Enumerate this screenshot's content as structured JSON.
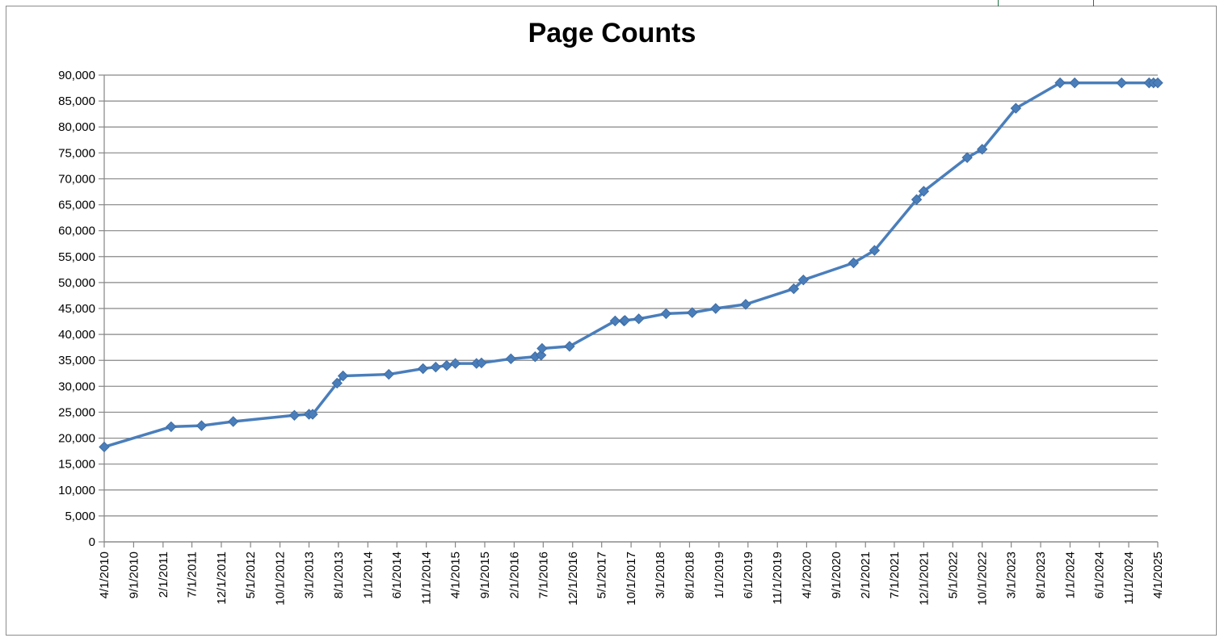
{
  "chart_data": {
    "type": "line",
    "title": "Page Counts",
    "xlabel": "",
    "ylabel": "",
    "ylim": [
      0,
      90000
    ],
    "y_ticks": [
      "0",
      "5,000",
      "10,000",
      "15,000",
      "20,000",
      "25,000",
      "30,000",
      "35,000",
      "40,000",
      "45,000",
      "50,000",
      "55,000",
      "60,000",
      "65,000",
      "70,000",
      "75,000",
      "80,000",
      "85,000",
      "90,000"
    ],
    "x_tick_labels": [
      "4/1/2010",
      "9/1/2010",
      "2/1/2011",
      "7/1/2011",
      "12/1/2011",
      "5/1/2012",
      "10/1/2012",
      "3/1/2013",
      "8/1/2013",
      "1/1/2014",
      "6/1/2014",
      "11/1/2014",
      "4/1/2015",
      "9/1/2015",
      "2/1/2016",
      "7/1/2016",
      "12/1/2016",
      "5/1/2017",
      "10/1/2017",
      "3/1/2018",
      "8/1/2018",
      "1/1/2019",
      "6/1/2019",
      "11/1/2019",
      "4/1/2020",
      "9/1/2020",
      "2/1/2021",
      "7/1/2021",
      "12/1/2021",
      "5/1/2022",
      "10/1/2022",
      "3/1/2023",
      "8/1/2023",
      "1/1/2024",
      "6/1/2024",
      "11/1/2024",
      "4/1/2025"
    ],
    "grid": true,
    "line_color": "#4a7ebb",
    "series": [
      {
        "x": [
          "2010-04-01",
          "2011-03-15",
          "2011-08-20",
          "2012-02-01",
          "2012-12-15",
          "2013-03-01",
          "2013-03-20",
          "2013-07-25",
          "2013-08-25",
          "2014-04-20",
          "2014-10-15",
          "2014-12-20",
          "2015-02-15",
          "2015-04-01",
          "2015-07-20",
          "2015-08-15",
          "2016-01-15",
          "2016-05-20",
          "2016-06-20",
          "2016-06-25",
          "2016-11-15",
          "2017-07-10",
          "2017-08-25",
          "2017-08-30",
          "2017-11-10",
          "2018-04-01",
          "2018-08-15",
          "2018-12-15",
          "2019-05-20",
          "2020-01-25",
          "2020-03-15",
          "2020-12-01",
          "2021-03-20",
          "2021-10-25",
          "2021-12-01",
          "2022-07-15",
          "2022-10-01",
          "2023-03-25",
          "2023-11-10",
          "2024-01-25",
          "2024-09-25",
          "2025-02-15",
          "2025-03-10",
          "2025-04-01"
        ],
        "values": [
          18300,
          22200,
          22400,
          23200,
          24400,
          24600,
          24600,
          30600,
          32000,
          32300,
          33400,
          33700,
          34000,
          34400,
          34400,
          34500,
          35300,
          35700,
          36000,
          37300,
          37700,
          42600,
          42600,
          42700,
          43000,
          44000,
          44200,
          45000,
          45800,
          48800,
          50500,
          53800,
          56200,
          66000,
          67600,
          74100,
          75700,
          83600,
          88500,
          88500,
          88500,
          88500,
          88500,
          88500
        ]
      }
    ]
  }
}
